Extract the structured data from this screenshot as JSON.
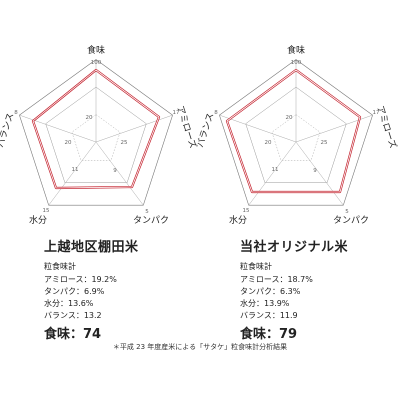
{
  "chart_data": [
    {
      "type": "radar",
      "axes": [
        "食味",
        "アミローズ",
        "タンパク",
        "水分",
        "バランス"
      ],
      "ticks": {
        "食味": [
          "100",
          "20"
        ],
        "アミローズ": [
          "17",
          "25"
        ],
        "タンパク": [
          "5",
          "9"
        ],
        "水分": [
          "15",
          "11"
        ],
        "バランス": [
          "8",
          "20"
        ]
      },
      "series": [
        {
          "values": [
            74,
            19.2,
            6.9,
            13.6,
            13.2
          ]
        }
      ],
      "series_color": "#c4222e",
      "title": "上越地区棚田米"
    },
    {
      "type": "radar",
      "axes": [
        "食味",
        "アミローズ",
        "タンパク",
        "水分",
        "バランス"
      ],
      "ticks": {
        "食味": [
          "100",
          "20"
        ],
        "アミローズ": [
          "17",
          "25"
        ],
        "タンパク": [
          "5",
          "9"
        ],
        "水分": [
          "15",
          "11"
        ],
        "バランス": [
          "8",
          "20"
        ]
      },
      "series": [
        {
          "values": [
            79,
            18.7,
            6.3,
            13.9,
            11.9
          ]
        }
      ],
      "series_color": "#c4222e",
      "title": "当社オリジナル米"
    }
  ],
  "panels": [
    {
      "title": "上越地区棚田米",
      "analyzer_label": "粒食味計",
      "metrics": [
        "アミロース：19.2%",
        "タンパク：6.9%",
        "水分：13.6%",
        "バランス：13.2"
      ],
      "taste": "食味：74"
    },
    {
      "title": "当社オリジナル米",
      "analyzer_label": "粒食味計",
      "metrics": [
        "アミロース：18.7%",
        "タンパク：6.3%",
        "水分：13.9%",
        "バランス：11.9"
      ],
      "taste": "食味：79"
    }
  ],
  "footnote": "＊平成 23 年度産米による「サタケ」粒食味計分析結果"
}
